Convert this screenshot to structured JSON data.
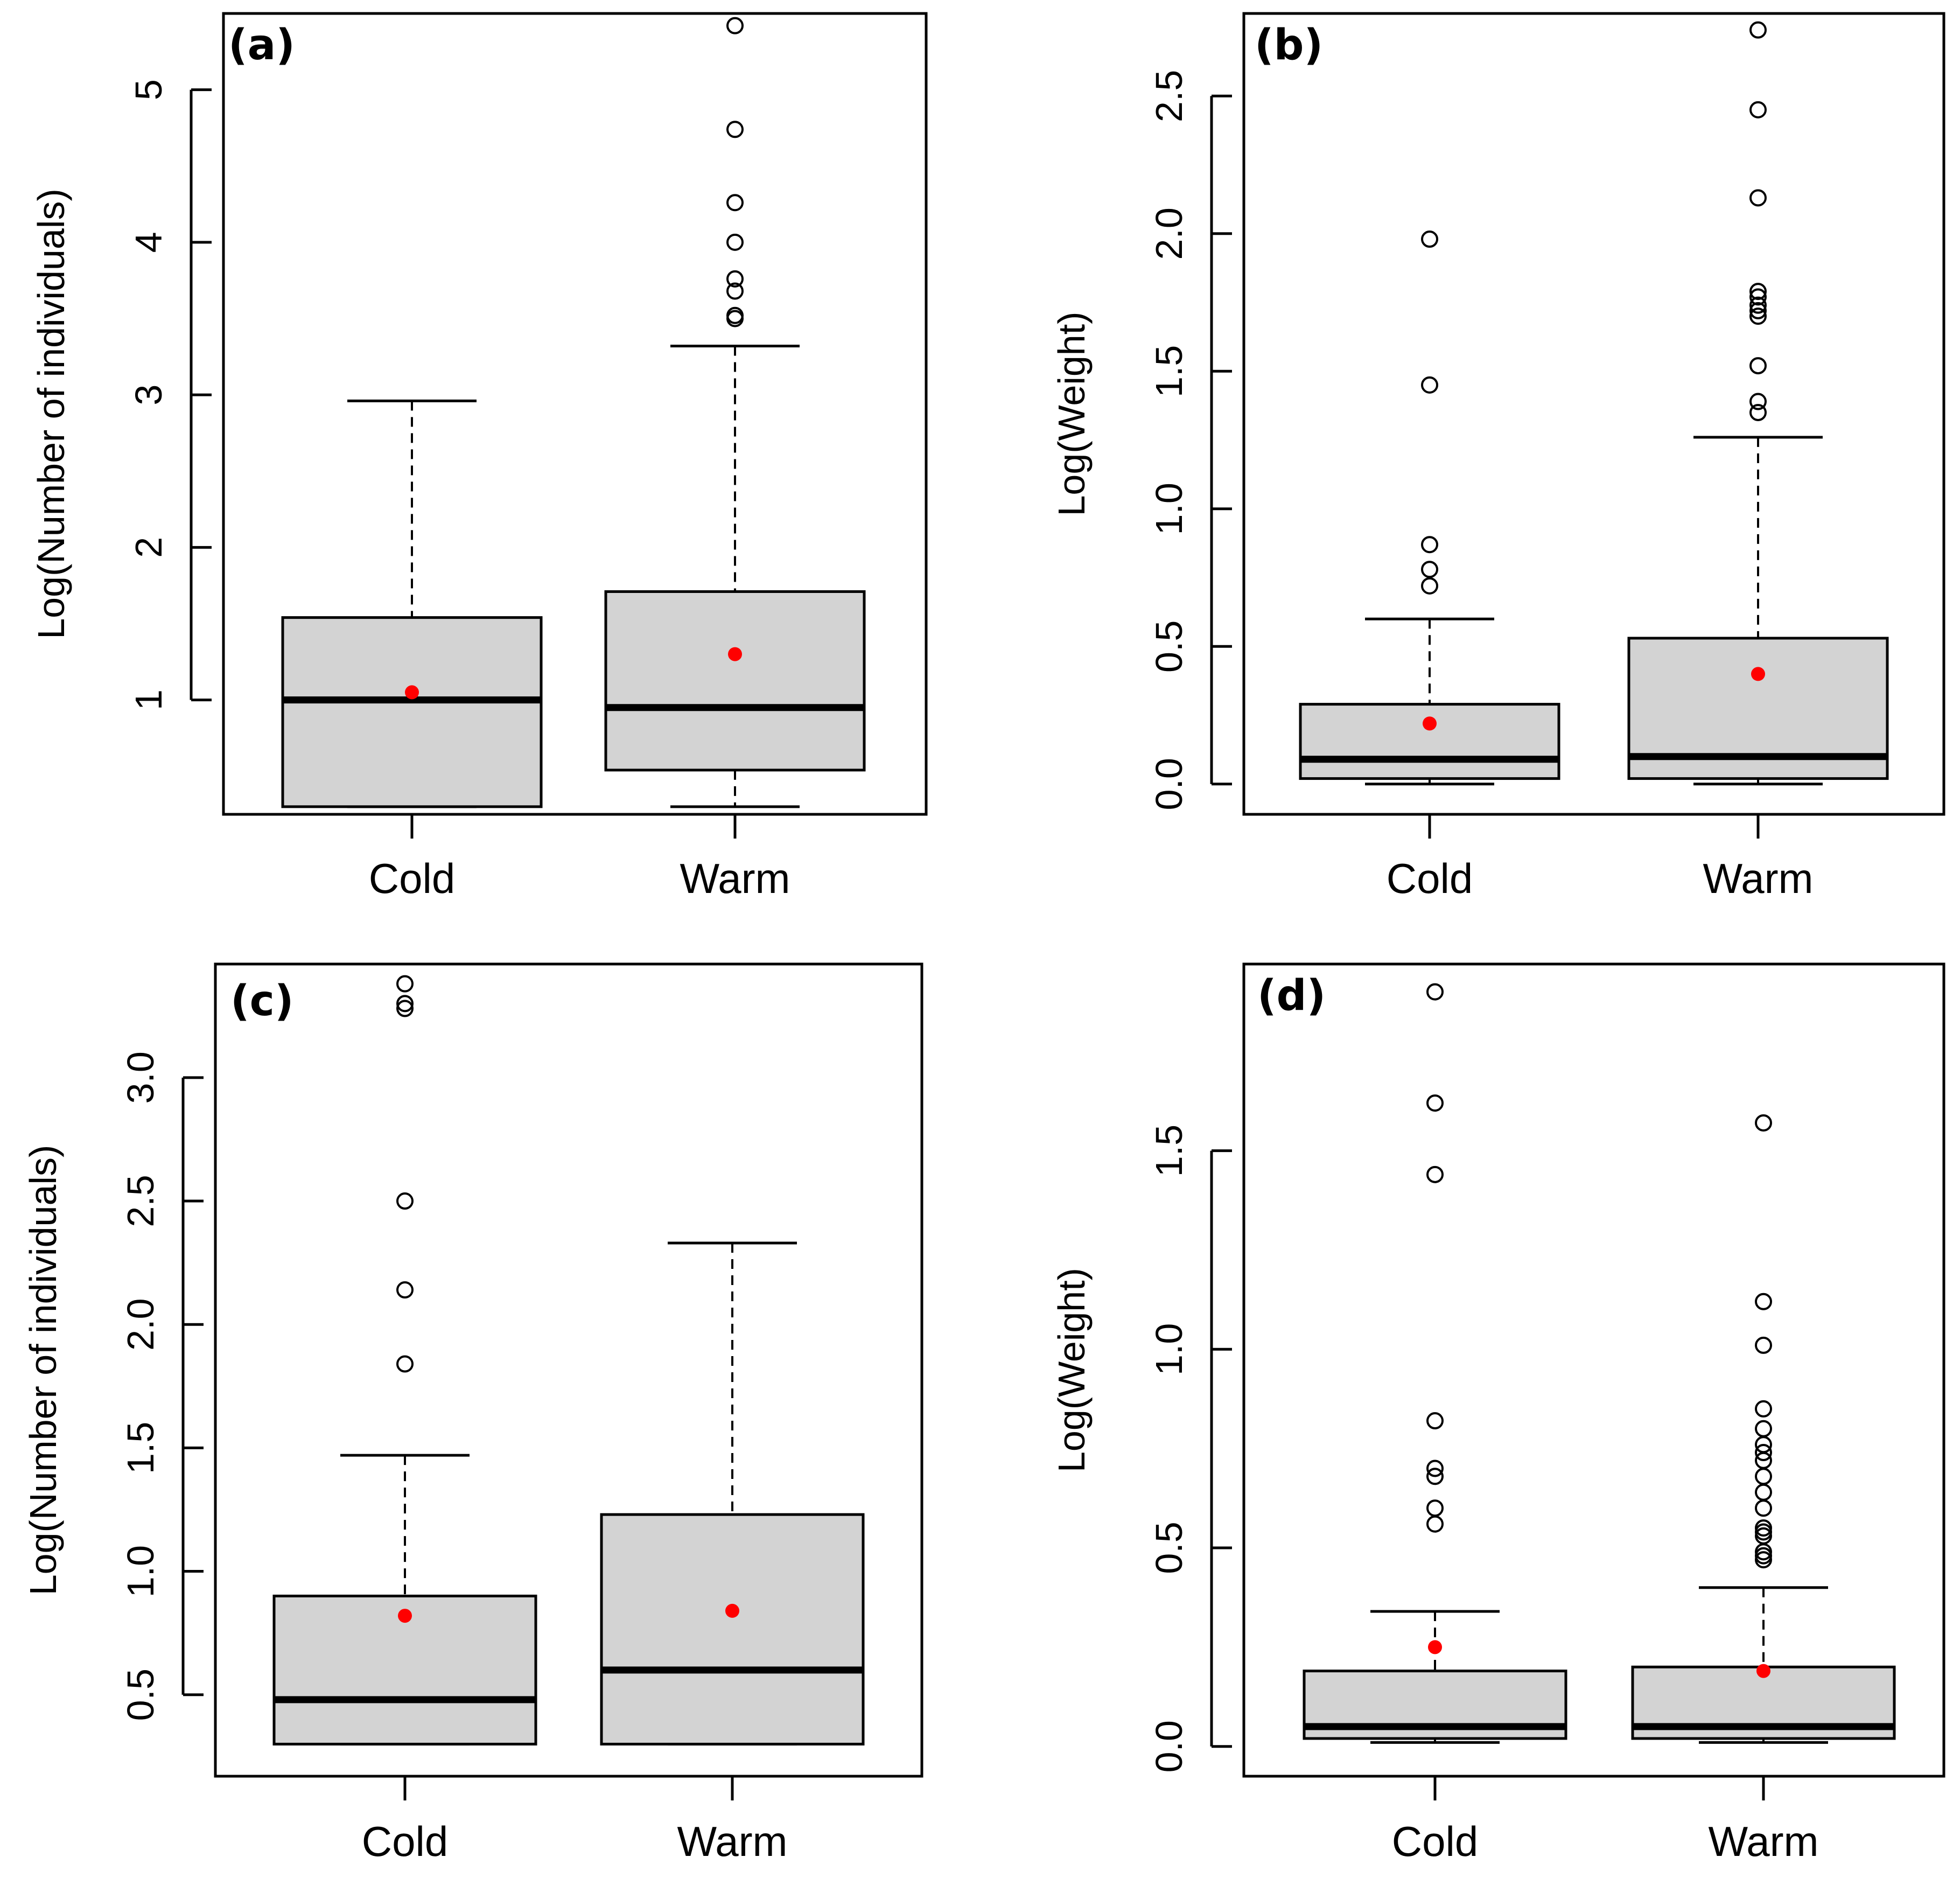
{
  "colors": {
    "box_fill": "#d3d3d3",
    "mean_point": "#ff0000",
    "ink": "#000000",
    "background": "#ffffff"
  },
  "chart_data": [
    {
      "type": "box",
      "panel_label": "(a)",
      "ylabel": "Log(Number of individuals)",
      "categories": [
        "Cold",
        "Warm"
      ],
      "ylim": [
        0.25,
        5.5
      ],
      "yticks": [
        1,
        2,
        3,
        4,
        5
      ],
      "ytick_labels": [
        "1",
        "2",
        "3",
        "4",
        "5"
      ],
      "groups": [
        {
          "name": "Cold",
          "whisker_low": 0.3,
          "q1": 0.3,
          "median": 1.0,
          "q3": 1.54,
          "whisker_high": 2.96,
          "mean": 1.05,
          "outliers": []
        },
        {
          "name": "Warm",
          "whisker_low": 0.3,
          "q1": 0.54,
          "median": 0.95,
          "q3": 1.71,
          "whisker_high": 3.32,
          "mean": 1.3,
          "outliers": [
            3.5,
            3.52,
            3.68,
            3.76,
            4.0,
            4.26,
            4.74,
            5.42
          ]
        }
      ]
    },
    {
      "type": "box",
      "panel_label": "(b)",
      "ylabel": "Log(Weight)",
      "categories": [
        "Cold",
        "Warm"
      ],
      "ylim": [
        -0.11,
        2.8
      ],
      "yticks": [
        0.0,
        0.5,
        1.0,
        1.5,
        2.0,
        2.5
      ],
      "ytick_labels": [
        "0.0",
        "0.5",
        "1.0",
        "1.5",
        "2.0",
        "2.5"
      ],
      "groups": [
        {
          "name": "Cold",
          "whisker_low": 0.0,
          "q1": 0.02,
          "median": 0.09,
          "q3": 0.29,
          "whisker_high": 0.6,
          "mean": 0.22,
          "outliers": [
            0.72,
            0.78,
            0.87,
            1.45,
            1.98
          ]
        },
        {
          "name": "Warm",
          "whisker_low": 0.0,
          "q1": 0.02,
          "median": 0.1,
          "q3": 0.53,
          "whisker_high": 1.26,
          "mean": 0.4,
          "outliers": [
            1.35,
            1.39,
            1.52,
            1.7,
            1.72,
            1.74,
            1.77,
            1.79,
            2.13,
            2.45,
            2.74
          ]
        }
      ]
    },
    {
      "type": "box",
      "panel_label": "(c)",
      "ylabel": "Log(Number of individuals)",
      "categories": [
        "Cold",
        "Warm"
      ],
      "ylim": [
        0.17,
        3.46
      ],
      "yticks": [
        0.5,
        1.0,
        1.5,
        2.0,
        2.5,
        3.0
      ],
      "ytick_labels": [
        "0.5",
        "1.0",
        "1.5",
        "2.0",
        "2.5",
        "3.0"
      ],
      "groups": [
        {
          "name": "Cold",
          "whisker_low": 0.3,
          "q1": 0.3,
          "median": 0.48,
          "q3": 0.9,
          "whisker_high": 1.47,
          "mean": 0.82,
          "outliers": [
            1.84,
            2.14,
            2.5,
            3.28,
            3.3,
            3.38
          ]
        },
        {
          "name": "Warm",
          "whisker_low": 0.3,
          "q1": 0.3,
          "median": 0.6,
          "q3": 1.23,
          "whisker_high": 2.33,
          "mean": 0.84,
          "outliers": []
        }
      ]
    },
    {
      "type": "box",
      "panel_label": "(d)",
      "ylabel": "Log(Weight)",
      "categories": [
        "Cold",
        "Warm"
      ],
      "ylim": [
        -0.075,
        1.97
      ],
      "yticks": [
        0.0,
        0.5,
        1.0,
        1.5
      ],
      "ytick_labels": [
        "0.0",
        "0.5",
        "1.0",
        "1.5"
      ],
      "groups": [
        {
          "name": "Cold",
          "whisker_low": 0.01,
          "q1": 0.02,
          "median": 0.05,
          "q3": 0.19,
          "whisker_high": 0.34,
          "mean": 0.25,
          "outliers": [
            0.56,
            0.6,
            0.68,
            0.7,
            0.82,
            1.44,
            1.62,
            1.9
          ]
        },
        {
          "name": "Warm",
          "whisker_low": 0.01,
          "q1": 0.02,
          "median": 0.05,
          "q3": 0.2,
          "whisker_high": 0.4,
          "mean": 0.19,
          "outliers": [
            0.47,
            0.48,
            0.49,
            0.53,
            0.54,
            0.55,
            0.6,
            0.64,
            0.68,
            0.72,
            0.74,
            0.76,
            0.8,
            0.85,
            1.01,
            1.12,
            1.57
          ]
        }
      ]
    }
  ]
}
